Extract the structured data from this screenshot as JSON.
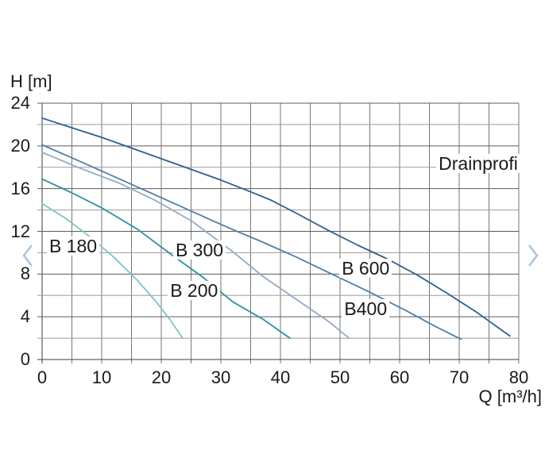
{
  "chart_data": {
    "type": "line",
    "title": "",
    "xlabel": "Q [m³/h]",
    "ylabel": "H [m]",
    "xlim": [
      0,
      80
    ],
    "ylim": [
      0,
      24
    ],
    "x_grid_step": 5,
    "y_grid_step": 2,
    "x_ticks": [
      0,
      10,
      20,
      30,
      40,
      50,
      60,
      70,
      80
    ],
    "y_ticks": [
      24,
      20,
      16,
      12,
      8,
      4,
      0
    ],
    "grid": true,
    "legend": "inline-labels",
    "series": [
      {
        "name": "B 180",
        "color": "#7fc3c6",
        "label_at": {
          "q": 5.2,
          "h": 10.6
        },
        "points": [
          [
            0,
            14.6
          ],
          [
            4,
            13.2
          ],
          [
            8,
            11.5
          ],
          [
            12,
            9.6
          ],
          [
            16,
            7.4
          ],
          [
            19,
            5.5
          ],
          [
            21.5,
            3.7
          ],
          [
            23.6,
            2.0
          ]
        ]
      },
      {
        "name": "B 200",
        "color": "#2e929e",
        "label_at": {
          "q": 25.5,
          "h": 6.5
        },
        "points": [
          [
            0,
            16.9
          ],
          [
            5,
            15.6
          ],
          [
            10,
            14.2
          ],
          [
            16,
            12.2
          ],
          [
            22,
            9.7
          ],
          [
            27,
            7.7
          ],
          [
            32,
            5.4
          ],
          [
            37,
            3.8
          ],
          [
            41.6,
            2.0
          ]
        ]
      },
      {
        "name": "B 300",
        "color": "#93abc4",
        "label_at": {
          "q": 26.4,
          "h": 10.25
        },
        "points": [
          [
            0,
            19.4
          ],
          [
            6,
            18.0
          ],
          [
            13,
            16.5
          ],
          [
            19,
            14.9
          ],
          [
            25,
            13.0
          ],
          [
            32,
            10.1
          ],
          [
            37,
            7.8
          ],
          [
            43,
            5.5
          ],
          [
            48,
            3.6
          ],
          [
            51.5,
            2.0
          ]
        ]
      },
      {
        "name": "B400",
        "color": "#527ea8",
        "label_at": {
          "q": 54.3,
          "h": 4.75
        },
        "points": [
          [
            0,
            20.1
          ],
          [
            7,
            18.4
          ],
          [
            13,
            16.9
          ],
          [
            19,
            15.4
          ],
          [
            25,
            13.9
          ],
          [
            31,
            12.4
          ],
          [
            37,
            11.0
          ],
          [
            43,
            9.5
          ],
          [
            49,
            7.9
          ],
          [
            55,
            6.3
          ],
          [
            61,
            4.6
          ],
          [
            66,
            3.1
          ],
          [
            70.3,
            1.9
          ]
        ]
      },
      {
        "name": "B 600",
        "color": "#2f608f",
        "label_at": {
          "q": 54.3,
          "h": 8.55
        },
        "points": [
          [
            0,
            22.6
          ],
          [
            5,
            21.7
          ],
          [
            10,
            20.8
          ],
          [
            15,
            19.8
          ],
          [
            20,
            18.8
          ],
          [
            25,
            17.8
          ],
          [
            30,
            16.8
          ],
          [
            35,
            15.7
          ],
          [
            38.5,
            14.9
          ],
          [
            43,
            13.6
          ],
          [
            48,
            12.1
          ],
          [
            53,
            10.7
          ],
          [
            58,
            9.4
          ],
          [
            63,
            7.9
          ],
          [
            68,
            6.2
          ],
          [
            73,
            4.4
          ],
          [
            78.5,
            2.2
          ]
        ]
      }
    ],
    "annotations": [
      {
        "text": "Drainprofi",
        "q": 73.2,
        "h": 18.35
      }
    ]
  },
  "nav": {
    "prev_icon": "chevron-left",
    "next_icon": "chevron-right",
    "chevron_color": "#a8c3de"
  }
}
